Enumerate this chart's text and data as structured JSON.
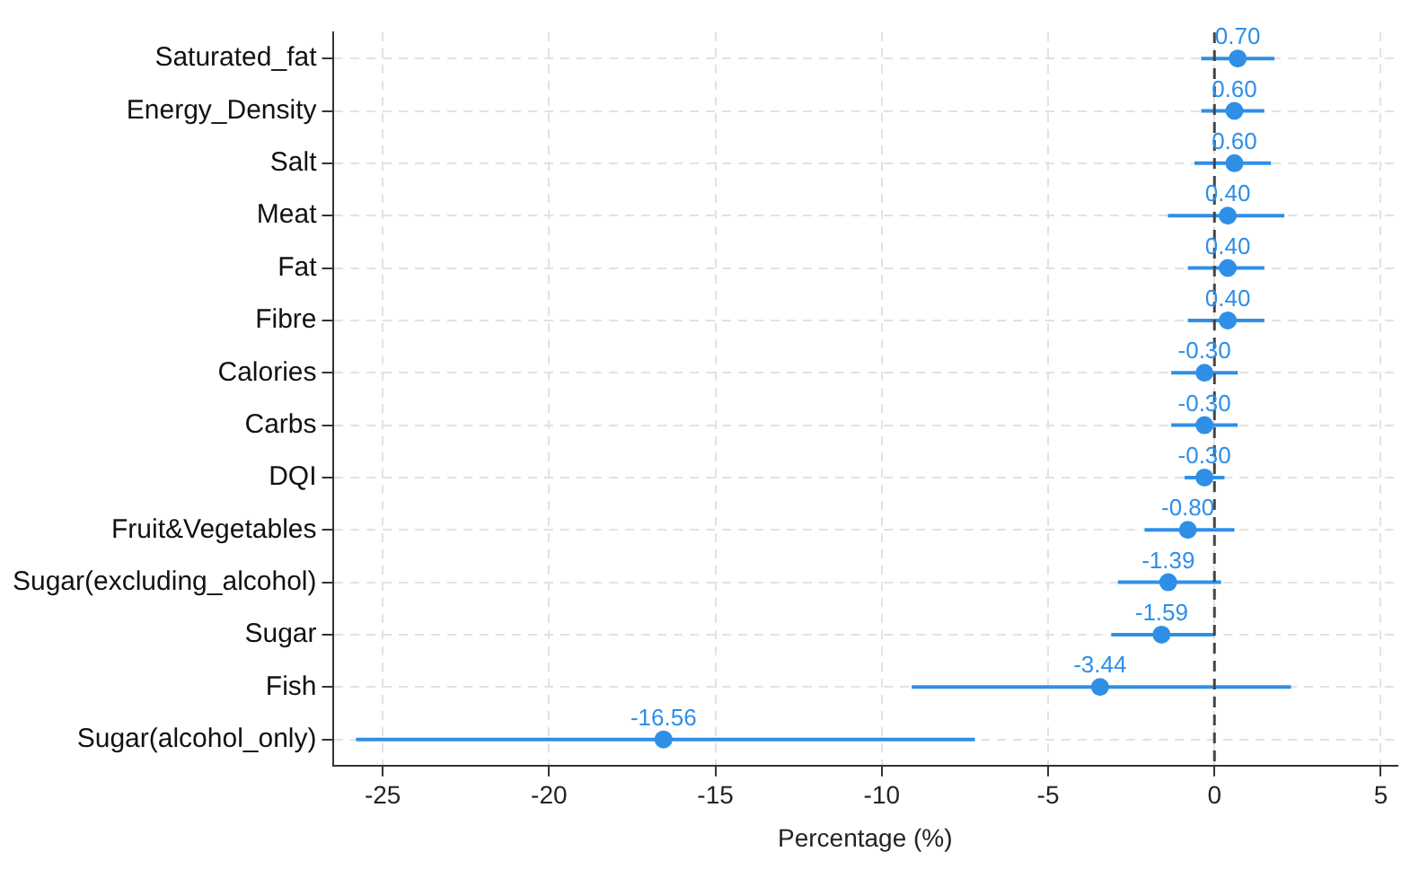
{
  "chart_data": {
    "type": "scatter",
    "orientation": "horizontal",
    "xlabel": "Percentage (%)",
    "categories": [
      "Saturated_fat",
      "Energy_Density",
      "Salt",
      "Meat",
      "Fat",
      "Fibre",
      "Calories",
      "Carbs",
      "DQI",
      "Fruit&Vegetables",
      "Sugar(excluding_alcohol)",
      "Sugar",
      "Fish",
      "Sugar(alcohol_only)"
    ],
    "color": "#2f8fe6",
    "values": [
      0.7,
      0.6,
      0.6,
      0.4,
      0.4,
      0.4,
      -0.3,
      -0.3,
      -0.3,
      -0.8,
      -1.39,
      -1.59,
      -3.44,
      -16.56
    ],
    "value_labels": [
      "0.70",
      "0.60",
      "0.60",
      "0.40",
      "0.40",
      "0.40",
      "-0.30",
      "-0.30",
      "-0.30",
      "-0.80",
      "-1.39",
      "-1.59",
      "-3.44",
      "-16.56"
    ],
    "errors": [
      [
        -0.4,
        1.8
      ],
      [
        -0.4,
        1.5
      ],
      [
        -0.6,
        1.7
      ],
      [
        -1.4,
        2.1
      ],
      [
        -0.8,
        1.5
      ],
      [
        -0.8,
        1.5
      ],
      [
        -1.3,
        0.7
      ],
      [
        -1.3,
        0.7
      ],
      [
        -0.9,
        0.3
      ],
      [
        -2.1,
        0.6
      ],
      [
        -2.9,
        0.2
      ],
      [
        -3.1,
        0.0
      ],
      [
        -9.1,
        2.3
      ],
      [
        -25.8,
        -7.2
      ]
    ],
    "xlim": [
      -26.5,
      5.5
    ],
    "xticks": [
      -25,
      -20,
      -15,
      -10,
      -5,
      0,
      5
    ],
    "ref_lines": [
      {
        "axis": "x",
        "value": 0,
        "color": "#444444",
        "line_style": "dashed"
      }
    ],
    "grid": true,
    "marker": "circle"
  }
}
